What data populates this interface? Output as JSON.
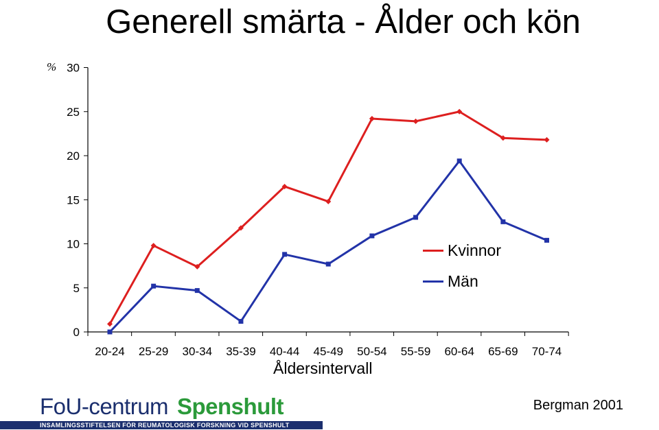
{
  "colors": {
    "kvinnor": "#dd1f1f",
    "man": "#2233a8",
    "axis": "#000000"
  },
  "footer": {
    "logo_main": "FoU-centrum",
    "logo_brand": "Spenshult",
    "logo_sub": "INSAMLINGSSTIFTELSEN FÖR REUMATOLOGISK FORSKNING VID SPENSHULT",
    "credit": "Bergman 2001"
  },
  "chart_data": {
    "type": "line",
    "title": "Generell smärta - Ålder och kön",
    "y_unit": "%",
    "xlabel": "Åldersintervall",
    "ylabel": "",
    "categories": [
      "20-24",
      "25-29",
      "30-34",
      "35-39",
      "40-44",
      "45-49",
      "50-54",
      "55-59",
      "60-64",
      "65-69",
      "70-74"
    ],
    "ylim": [
      0,
      30
    ],
    "yticks": [
      0,
      5,
      10,
      15,
      20,
      25,
      30
    ],
    "grid": false,
    "legend_position": "right",
    "series": [
      {
        "name": "Kvinnor",
        "color": "#dd1f1f",
        "marker": "diamond",
        "values": [
          0.9,
          9.8,
          7.4,
          11.8,
          16.5,
          14.8,
          24.2,
          23.9,
          25.0,
          22.0,
          21.8
        ]
      },
      {
        "name": "Män",
        "color": "#2233a8",
        "marker": "square",
        "values": [
          0.0,
          5.2,
          4.7,
          1.2,
          8.8,
          7.7,
          10.9,
          13.0,
          19.4,
          12.5,
          10.4
        ]
      }
    ]
  }
}
